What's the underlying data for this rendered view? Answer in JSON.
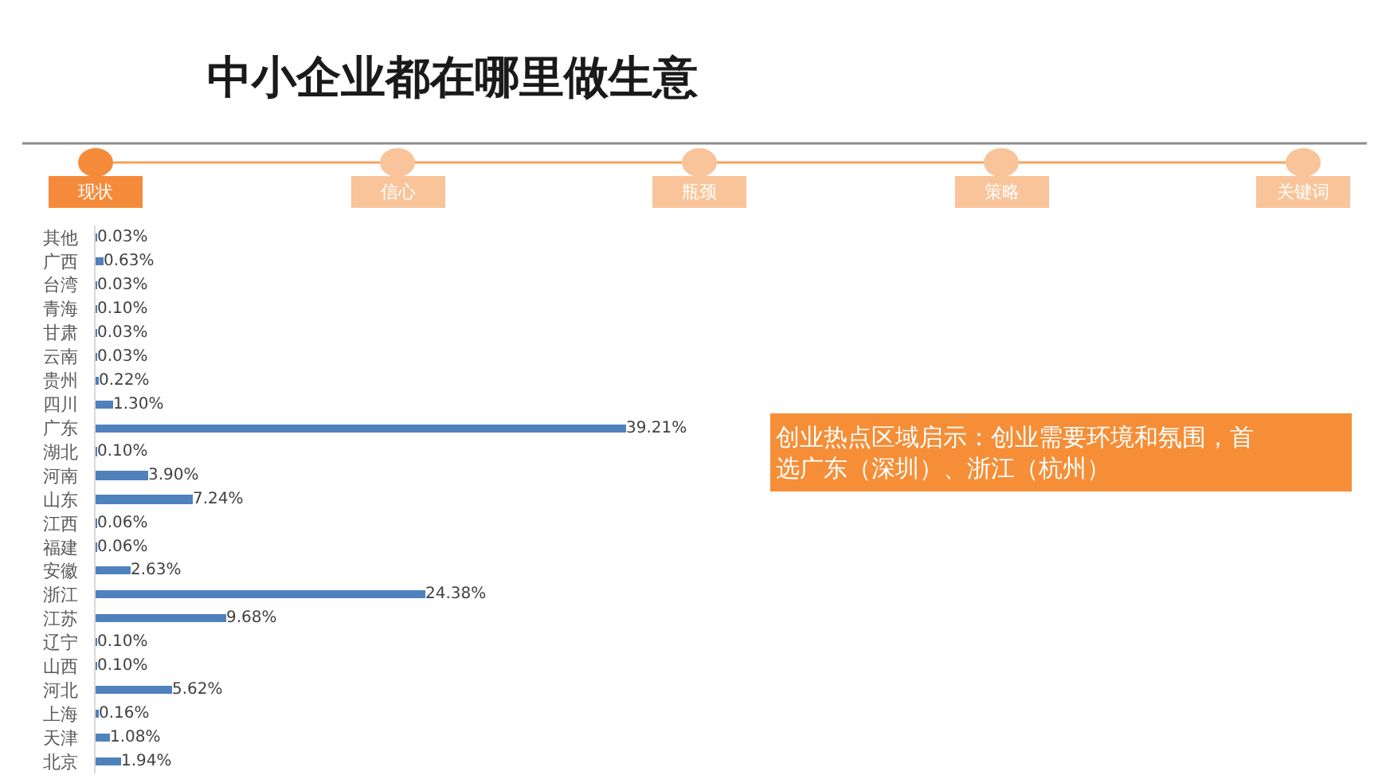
{
  "chart_data": {
    "type": "bar",
    "orientation": "horizontal",
    "title": "中小企业都在哪里做生意",
    "categories": [
      "其他",
      "广西",
      "台湾",
      "青海",
      "甘肃",
      "云南",
      "贵州",
      "四川",
      "广东",
      "湖北",
      "河南",
      "山东",
      "江西",
      "福建",
      "安徽",
      "浙江",
      "江苏",
      "辽宁",
      "山西",
      "河北",
      "上海",
      "天津",
      "北京"
    ],
    "values": [
      0.03,
      0.63,
      0.03,
      0.1,
      0.03,
      0.03,
      0.22,
      1.3,
      39.21,
      0.1,
      3.9,
      7.24,
      0.06,
      0.06,
      2.63,
      24.38,
      9.68,
      0.1,
      0.1,
      5.62,
      0.16,
      1.08,
      1.94
    ],
    "value_labels": [
      "0.03%",
      "0.63%",
      "0.03%",
      "0.10%",
      "0.03%",
      "0.03%",
      "0.22%",
      "1.30%",
      "39.21%",
      "0.10%",
      "3.90%",
      "7.24%",
      "0.06%",
      "0.06%",
      "2.63%",
      "24.38%",
      "9.68%",
      "0.10%",
      "0.10%",
      "5.62%",
      "0.16%",
      "1.08%",
      "1.94%"
    ],
    "color": "#4f81bd",
    "tick_labels": "y",
    "annotations": [
      "现状",
      "信心",
      "瓶颈",
      "策略",
      "关键词",
      "创业热点区域启示：创业需要环境和氛围，首选广东（深圳）、浙江（杭州）"
    ]
  }
}
